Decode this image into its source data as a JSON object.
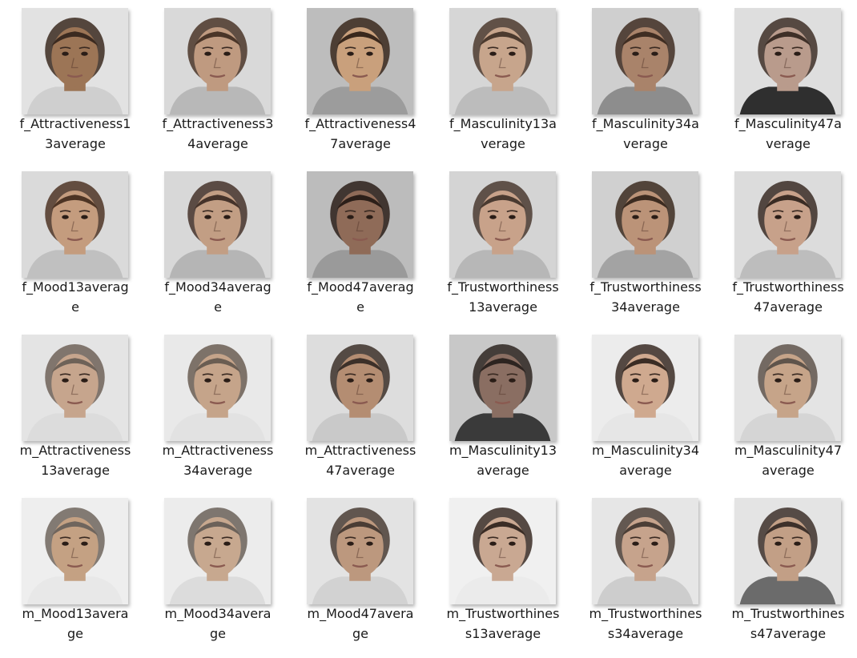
{
  "files": [
    {
      "line1": "f_Attractiveness1",
      "line2": "3average",
      "icon": "face-thumbnail-icon",
      "skin": "#9c7556",
      "hair": "#3b2a20",
      "bg": "#e2e2e2",
      "shirt": "#cfcfcf"
    },
    {
      "line1": "f_Attractiveness3",
      "line2": "4average",
      "icon": "face-thumbnail-icon",
      "skin": "#bf9a80",
      "hair": "#4a3528",
      "bg": "#d9d9d9",
      "shirt": "#b8b8b8"
    },
    {
      "line1": "f_Attractiveness4",
      "line2": "7average",
      "icon": "face-thumbnail-icon",
      "skin": "#c9a07c",
      "hair": "#3a281c",
      "bg": "#bdbdbd",
      "shirt": "#9c9c9c"
    },
    {
      "line1": "f_Masculinity13a",
      "line2": "verage",
      "icon": "face-thumbnail-icon",
      "skin": "#c7a58c",
      "hair": "#4c3a2e",
      "bg": "#d6d6d6",
      "shirt": "#bcbcbc"
    },
    {
      "line1": "f_Masculinity34a",
      "line2": "verage",
      "icon": "face-thumbnail-icon",
      "skin": "#a9836a",
      "hair": "#3f2d22",
      "bg": "#cfcfcf",
      "shirt": "#8d8d8d"
    },
    {
      "line1": "f_Masculinity47a",
      "line2": "verage",
      "icon": "face-thumbnail-icon",
      "skin": "#b99b8c",
      "hair": "#3e2f27",
      "bg": "#dedede",
      "shirt": "#2f2f2f"
    },
    {
      "line1": "f_Mood13averag",
      "line2": "e",
      "icon": "face-thumbnail-icon",
      "skin": "#c49c7e",
      "hair": "#4d3424",
      "bg": "#dadada",
      "shirt": "#c0c0c0"
    },
    {
      "line1": "f_Mood34averag",
      "line2": "e",
      "icon": "face-thumbnail-icon",
      "skin": "#c29e84",
      "hair": "#45332a",
      "bg": "#d8d8d8",
      "shirt": "#b5b5b5"
    },
    {
      "line1": "f_Mood47averag",
      "line2": "e",
      "icon": "face-thumbnail-icon",
      "skin": "#8f6b58",
      "hair": "#2c1f19",
      "bg": "#bcbcbc",
      "shirt": "#9a9a9a"
    },
    {
      "line1": "f_Trustworthiness",
      "line2": "13average",
      "icon": "face-thumbnail-icon",
      "skin": "#c8a28a",
      "hair": "#4a3a30",
      "bg": "#d4d4d4",
      "shirt": "#b7b7b7"
    },
    {
      "line1": "f_Trustworthiness",
      "line2": "34average",
      "icon": "face-thumbnail-icon",
      "skin": "#bb9378",
      "hair": "#3c2b20",
      "bg": "#d0d0d0",
      "shirt": "#a3a3a3"
    },
    {
      "line1": "f_Trustworthiness",
      "line2": "47average",
      "icon": "face-thumbnail-icon",
      "skin": "#c7a18a",
      "hair": "#3a2c24",
      "bg": "#dcdcdc",
      "shirt": "#bdbdbd"
    },
    {
      "line1": "m_Attractiveness",
      "line2": "13average",
      "icon": "face-thumbnail-icon",
      "skin": "#c6a58d",
      "hair": "#6e6258",
      "bg": "#e4e4e4",
      "shirt": "#dcdcdc"
    },
    {
      "line1": "m_Attractiveness",
      "line2": "34average",
      "icon": "face-thumbnail-icon",
      "skin": "#c5a48a",
      "hair": "#6a5d52",
      "bg": "#e9e9e9",
      "shirt": "#e2e2e2"
    },
    {
      "line1": "m_Attractiveness",
      "line2": "47average",
      "icon": "face-thumbnail-icon",
      "skin": "#b48d72",
      "hair": "#3c3029",
      "bg": "#dddddd",
      "shirt": "#c9c9c9"
    },
    {
      "line1": "m_Masculinity13",
      "line2": "average",
      "icon": "face-thumbnail-icon",
      "skin": "#8a6e62",
      "hair": "#2d2420",
      "bg": "#c8c8c8",
      "shirt": "#3a3a3a"
    },
    {
      "line1": "m_Masculinity34",
      "line2": "average",
      "icon": "face-thumbnail-icon",
      "skin": "#cfa98f",
      "hair": "#3a2c24",
      "bg": "#ececec",
      "shirt": "#e6e6e6"
    },
    {
      "line1": "m_Masculinity47",
      "line2": "average",
      "icon": "face-thumbnail-icon",
      "skin": "#c6a489",
      "hair": "#5f544b",
      "bg": "#e4e4e4",
      "shirt": "#d5d5d5"
    },
    {
      "line1": "m_Mood13avera",
      "line2": "ge",
      "icon": "face-thumbnail-icon",
      "skin": "#c4a183",
      "hair": "#6f655d",
      "bg": "#eeeeee",
      "shirt": "#e8e8e8"
    },
    {
      "line1": "m_Mood34avera",
      "line2": "ge",
      "icon": "face-thumbnail-icon",
      "skin": "#c7a88f",
      "hair": "#6b6159",
      "bg": "#ececec",
      "shirt": "#dcdcdc"
    },
    {
      "line1": "m_Mood47avera",
      "line2": "ge",
      "icon": "face-thumbnail-icon",
      "skin": "#bc987e",
      "hair": "#4a3d35",
      "bg": "#e3e3e3",
      "shirt": "#d2d2d2"
    },
    {
      "line1": "m_Trustworthines",
      "line2": "s13average",
      "icon": "face-thumbnail-icon",
      "skin": "#c9a892",
      "hair": "#3a2c25",
      "bg": "#f0f0f0",
      "shirt": "#ebebeb"
    },
    {
      "line1": "m_Trustworthines",
      "line2": "s34average",
      "icon": "face-thumbnail-icon",
      "skin": "#c6a38c",
      "hair": "#4b3e36",
      "bg": "#e6e6e6",
      "shirt": "#cdcdcd"
    },
    {
      "line1": "m_Trustworthines",
      "line2": "s47average",
      "icon": "face-thumbnail-icon",
      "skin": "#c29f86",
      "hair": "#3d302a",
      "bg": "#e4e4e4",
      "shirt": "#6b6b6b"
    }
  ]
}
